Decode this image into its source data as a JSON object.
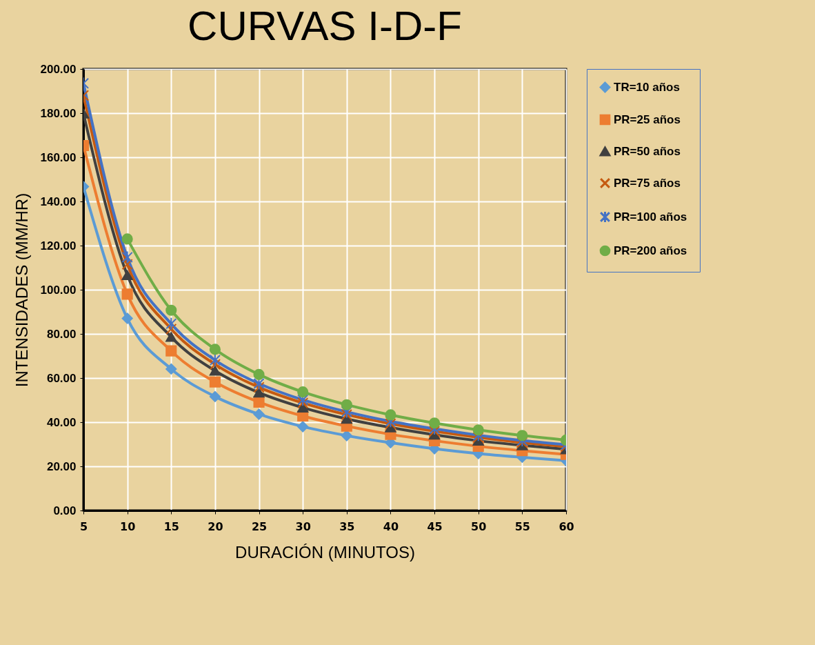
{
  "chart_data": {
    "type": "line",
    "title": "CURVAS I-D-F",
    "xlabel": "DURACIÓN (MINUTOS)",
    "ylabel": "INTENSIDADES (MM/HR)",
    "x": [
      5,
      10,
      15,
      20,
      25,
      30,
      35,
      40,
      45,
      50,
      55,
      60
    ],
    "series": [
      {
        "name": "TR=10 años",
        "color": "#5b9bd5",
        "marker": "diamond",
        "values": [
          146.7,
          87.0,
          64.1,
          51.6,
          43.6,
          38.0,
          33.9,
          30.7,
          28.0,
          25.8,
          24.1,
          22.6
        ]
      },
      {
        "name": "PR=25 años",
        "color": "#ed7d31",
        "marker": "square",
        "values": [
          165.3,
          98.0,
          72.3,
          58.2,
          49.1,
          42.8,
          38.2,
          34.5,
          31.6,
          29.1,
          27.1,
          25.4
        ]
      },
      {
        "name": "PR=50 años",
        "color": "#404040",
        "marker": "triangle",
        "values": [
          179.8,
          106.6,
          78.6,
          63.3,
          53.4,
          46.6,
          41.5,
          37.6,
          34.3,
          31.6,
          29.5,
          27.7
        ]
      },
      {
        "name": "PR=75 años",
        "color": "#c55a11",
        "marker": "cross",
        "values": [
          188.0,
          111.5,
          82.2,
          66.2,
          55.8,
          48.7,
          43.4,
          39.3,
          35.9,
          33.1,
          30.8,
          29.0
        ]
      },
      {
        "name": "PR=100 años",
        "color": "#4472c4",
        "marker": "star",
        "values": [
          193.5,
          114.7,
          84.6,
          68.1,
          57.5,
          50.1,
          44.7,
          40.4,
          37.0,
          34.1,
          31.7,
          29.8
        ]
      },
      {
        "name": "PR=200 años",
        "color": "#70ad47",
        "marker": "circle",
        "values": [
          null,
          123.0,
          90.7,
          73.0,
          61.6,
          53.7,
          47.9,
          43.3,
          39.6,
          36.5,
          34.0,
          31.9
        ]
      }
    ],
    "xlim": [
      5,
      60
    ],
    "xticks": [
      5,
      10,
      15,
      20,
      25,
      30,
      35,
      40,
      45,
      50,
      55,
      60
    ],
    "ylim": [
      0,
      200
    ],
    "yticks": [
      {
        "value": 0,
        "label": "0.00"
      },
      {
        "value": 20,
        "label": "20.00"
      },
      {
        "value": 40,
        "label": "40.00"
      },
      {
        "value": 60,
        "label": "60.00"
      },
      {
        "value": 80,
        "label": "80.00"
      },
      {
        "value": 100,
        "label": "100.00"
      },
      {
        "value": 120,
        "label": "120.00"
      },
      {
        "value": 140,
        "label": "140.00"
      },
      {
        "value": 160,
        "label": "160.00"
      },
      {
        "value": 180,
        "label": "180.00"
      },
      {
        "value": 200,
        "label": "200.00"
      }
    ],
    "grid": true,
    "legend": "right",
    "line_style": "solid"
  }
}
